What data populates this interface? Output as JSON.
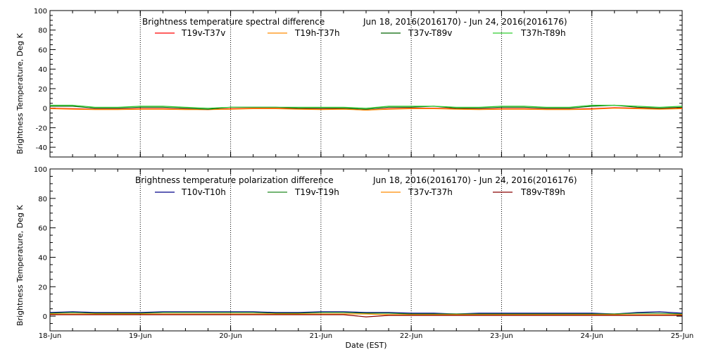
{
  "chart_data": [
    {
      "type": "line",
      "title": "Brightness temperature spectral difference",
      "date_range": "Jun 18, 2016(2016170) - Jun 24, 2016(2016176)",
      "ylabel": "Brightness Temperature, Deg K",
      "xlabel": "",
      "ylim": [
        -50,
        100
      ],
      "yticks": [
        -40,
        -20,
        0,
        20,
        40,
        60,
        80,
        100
      ],
      "xlim": [
        "2016-06-18",
        "2016-06-25"
      ],
      "x": [
        "2016-06-18 00:00",
        "2016-06-18 06:00",
        "2016-06-18 12:00",
        "2016-06-18 18:00",
        "2016-06-19 00:00",
        "2016-06-19 06:00",
        "2016-06-19 12:00",
        "2016-06-19 18:00",
        "2016-06-20 00:00",
        "2016-06-20 06:00",
        "2016-06-20 12:00",
        "2016-06-20 18:00",
        "2016-06-21 00:00",
        "2016-06-21 06:00",
        "2016-06-21 12:00",
        "2016-06-21 18:00",
        "2016-06-22 00:00",
        "2016-06-22 06:00",
        "2016-06-22 12:00",
        "2016-06-22 18:00",
        "2016-06-23 00:00",
        "2016-06-23 06:00",
        "2016-06-23 12:00",
        "2016-06-23 18:00",
        "2016-06-24 00:00",
        "2016-06-24 06:00",
        "2016-06-24 12:00",
        "2016-06-24 18:00",
        "2016-06-25 00:00"
      ],
      "series": [
        {
          "name": "T19v-T37v",
          "color": "#ff0000",
          "values": [
            0,
            -0.5,
            -1,
            -1,
            -0.5,
            -0.5,
            -1,
            -1.5,
            -0.5,
            0,
            0,
            -0.5,
            -1,
            -0.5,
            -2,
            -0.5,
            0,
            0,
            -0.5,
            -1,
            -0.5,
            -0.5,
            -1,
            -1,
            -0.5,
            0.5,
            0,
            -0.5,
            0
          ]
        },
        {
          "name": "T19h-T37h",
          "color": "#ff8c00",
          "values": [
            -0.5,
            -1,
            -1.5,
            -1.5,
            -1,
            -1,
            -1.5,
            -1.5,
            -1,
            -0.5,
            -0.5,
            -1,
            -1.5,
            -1,
            -2,
            -1,
            -0.5,
            -0.5,
            -1,
            -1.5,
            -1,
            -1,
            -1.5,
            -1.5,
            -1,
            0,
            -0.5,
            -1,
            -0.5
          ]
        },
        {
          "name": "T37v-T89v",
          "color": "#006400",
          "values": [
            2,
            2,
            0,
            0,
            1,
            1,
            0,
            -1,
            1,
            1,
            1,
            0,
            0,
            0,
            -1,
            1,
            1,
            2,
            0,
            0,
            1,
            1,
            0,
            0,
            2,
            3,
            1,
            0,
            1
          ]
        },
        {
          "name": "T37h-T89h",
          "color": "#32cd32",
          "values": [
            3,
            3,
            1,
            1,
            2,
            2,
            1,
            0,
            1,
            1,
            1,
            1,
            1,
            1,
            0,
            2,
            2,
            2,
            1,
            1,
            2,
            2,
            1,
            1,
            3,
            3,
            2,
            1,
            2
          ]
        }
      ]
    },
    {
      "type": "line",
      "title": "Brightness temperature polarization difference",
      "date_range": "Jun 18, 2016(2016170) - Jun 24, 2016(2016176)",
      "ylabel": "Brightness Temperature, Deg K",
      "xlabel": "Date (EST)",
      "ylim": [
        -10,
        100
      ],
      "yticks": [
        0,
        20,
        40,
        60,
        80,
        100
      ],
      "xlim": [
        "2016-06-18",
        "2016-06-25"
      ],
      "xticks": [
        "18-Jun",
        "19-Jun",
        "20-Jun",
        "21-Jun",
        "22-Jun",
        "23-Jun",
        "24-Jun",
        "25-Jun"
      ],
      "x": [
        "2016-06-18 00:00",
        "2016-06-18 06:00",
        "2016-06-18 12:00",
        "2016-06-18 18:00",
        "2016-06-19 00:00",
        "2016-06-19 06:00",
        "2016-06-19 12:00",
        "2016-06-19 18:00",
        "2016-06-20 00:00",
        "2016-06-20 06:00",
        "2016-06-20 12:00",
        "2016-06-20 18:00",
        "2016-06-21 00:00",
        "2016-06-21 06:00",
        "2016-06-21 12:00",
        "2016-06-21 18:00",
        "2016-06-22 00:00",
        "2016-06-22 06:00",
        "2016-06-22 12:00",
        "2016-06-22 18:00",
        "2016-06-23 00:00",
        "2016-06-23 06:00",
        "2016-06-23 12:00",
        "2016-06-23 18:00",
        "2016-06-24 00:00",
        "2016-06-24 06:00",
        "2016-06-24 12:00",
        "2016-06-24 18:00",
        "2016-06-25 00:00"
      ],
      "series": [
        {
          "name": "T10v-T10h",
          "color": "#00008b",
          "values": [
            2.5,
            3,
            2.5,
            2.5,
            2.5,
            3,
            3,
            3,
            3,
            3,
            2.5,
            2.5,
            3,
            3,
            2.5,
            2.5,
            2,
            2,
            1.5,
            2,
            2,
            2,
            2,
            2,
            2,
            1.5,
            2.5,
            3,
            2
          ]
        },
        {
          "name": "T19v-T19h",
          "color": "#228b22",
          "values": [
            2,
            2.5,
            2,
            2,
            2,
            2.5,
            2.5,
            2.5,
            2.5,
            2.5,
            2,
            2,
            2.5,
            2.5,
            2,
            2,
            1.5,
            1.5,
            1.5,
            1.5,
            1.5,
            1.5,
            1.5,
            1.5,
            1.5,
            1.5,
            2,
            2,
            1.5
          ]
        },
        {
          "name": "T37v-T37h",
          "color": "#ff8c00",
          "values": [
            1.5,
            1.5,
            1.5,
            1.5,
            1.5,
            1.5,
            1.5,
            1.5,
            1.5,
            1.5,
            1.5,
            1.5,
            1.5,
            1.5,
            1.5,
            1,
            1,
            1,
            1,
            1,
            1,
            1,
            1,
            1,
            1,
            1,
            1,
            1,
            1
          ]
        },
        {
          "name": "T89v-T89h",
          "color": "#8b0000",
          "values": [
            1,
            1,
            1,
            1,
            1,
            1,
            1,
            1,
            1,
            1,
            1,
            1,
            1,
            1,
            -0.5,
            0.5,
            0.5,
            0.5,
            0.5,
            0.5,
            0.5,
            0.5,
            0.5,
            0.5,
            0.5,
            0.5,
            0.5,
            0.5,
            0.5
          ]
        }
      ]
    }
  ]
}
